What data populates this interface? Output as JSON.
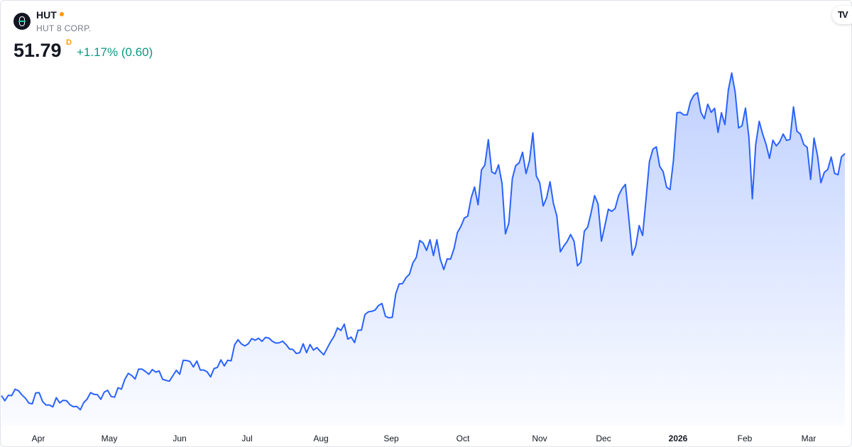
{
  "header": {
    "symbol": "HUT",
    "company": "HUT 8 CORP.",
    "price": "51.79",
    "resolution": "D",
    "change": "+1.17% (0.60)",
    "status_dot_color": "#ff9800",
    "change_color": "#089981",
    "logo_icon": "hut8-logo"
  },
  "branding": {
    "logo_text": "TV",
    "icon": "tradingview-logo"
  },
  "chart_data": {
    "type": "area",
    "title": "",
    "xlabel": "",
    "ylabel": "",
    "ylim": [
      4.8,
      76.4
    ],
    "grid": false,
    "line_color": "#2962ff",
    "x_ticks": [
      {
        "label": "Apr",
        "bold": false
      },
      {
        "label": "May",
        "bold": false
      },
      {
        "label": "Jun",
        "bold": false
      },
      {
        "label": "Jul",
        "bold": false
      },
      {
        "label": "Aug",
        "bold": false
      },
      {
        "label": "Sep",
        "bold": false
      },
      {
        "label": "Oct",
        "bold": false
      },
      {
        "label": "Nov",
        "bold": false
      },
      {
        "label": "Dec",
        "bold": false
      },
      {
        "label": "2026",
        "bold": true
      },
      {
        "label": "Feb",
        "bold": false
      },
      {
        "label": "Mar",
        "bold": false
      }
    ],
    "values": [
      13.04,
      12.21,
      13.08,
      13.04,
      14.06,
      13.8,
      13.12,
      12.62,
      11.83,
      11.72,
      13.46,
      13.5,
      12.09,
      11.53,
      11.53,
      11.22,
      12.7,
      11.87,
      12.28,
      12.21,
      11.56,
      11.26,
      11.3,
      10.77,
      11.9,
      12.47,
      13.5,
      13.23,
      13.19,
      12.44,
      13.61,
      13.87,
      12.89,
      12.78,
      14.29,
      14.06,
      15.65,
      16.6,
      16.26,
      15.69,
      17.28,
      17.28,
      16.9,
      16.45,
      17.21,
      16.79,
      16.98,
      15.65,
      15.47,
      15.35,
      16.22,
      17.09,
      16.45,
      18.69,
      18.65,
      18.5,
      17.62,
      18.57,
      17.13,
      17.13,
      16.83,
      16.03,
      17.36,
      17.55,
      18.76,
      17.78,
      18.69,
      18.61,
      21.15,
      21.98,
      21.3,
      21.0,
      21.34,
      22.17,
      21.9,
      22.21,
      21.72,
      22.36,
      22.25,
      21.75,
      21.45,
      21.49,
      21.75,
      21.22,
      20.5,
      20.43,
      19.78,
      19.9,
      21.34,
      19.9,
      21.22,
      20.31,
      20.73,
      20.12,
      19.56,
      20.62,
      21.64,
      22.51,
      23.87,
      23.46,
      24.48,
      22.09,
      22.4,
      21.53,
      23.5,
      23.53,
      26.0,
      26.45,
      26.53,
      26.75,
      27.47,
      27.78,
      25.73,
      25.5,
      25.58,
      29.33,
      30.92,
      30.99,
      31.94,
      32.47,
      34.28,
      35.16,
      37.88,
      37.47,
      36.29,
      38.0,
      35.46,
      38.0,
      34.89,
      33.22,
      34.93,
      34.89,
      36.59,
      39.17,
      40.12,
      41.48,
      41.78,
      44.7,
      46.44,
      43.6,
      49.17,
      49.97,
      54.02,
      48.87,
      48.56,
      50.0,
      47.01,
      38.94,
      40.69,
      47.81,
      49.89,
      50.31,
      52.01,
      48.6,
      50.61,
      55.12,
      48.22,
      47.12,
      43.41,
      44.7,
      47.28,
      43.79,
      41.78,
      36.06,
      36.97,
      37.73,
      38.83,
      37.77,
      33.83,
      34.4,
      39.36,
      40.04,
      42.35,
      45.08,
      43.72,
      37.77,
      40.27,
      42.88,
      42.54,
      43.0,
      45.08,
      46.18,
      46.86,
      41.22,
      35.53,
      36.97,
      40.27,
      38.68,
      44.51,
      50.53,
      52.5,
      52.88,
      49.74,
      48.91,
      46.41,
      46.03,
      50.69,
      58.34,
      58.41,
      58.0,
      58.0,
      60.19,
      61.18,
      61.56,
      58.41,
      57.39,
      59.7,
      58.41,
      59.06,
      55.19,
      58.34,
      56.44,
      61.97,
      64.7,
      61.59,
      55.91,
      56.25,
      59.09,
      54.4,
      44.55,
      53.26,
      56.97,
      54.97,
      53.3,
      51.03,
      53.94,
      53.03,
      53.68,
      54.93,
      53.91,
      54.09,
      59.28,
      55.38,
      54.93,
      53.26,
      52.81,
      47.66,
      54.28,
      51.48,
      47.12,
      48.79,
      49.25,
      51.25,
      48.64,
      48.41,
      51.29,
      51.79
    ]
  }
}
